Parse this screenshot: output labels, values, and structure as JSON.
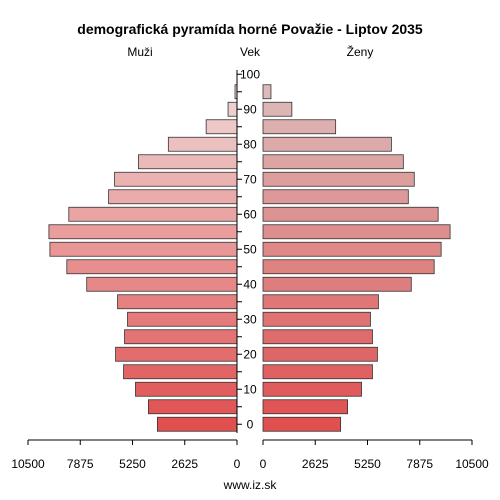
{
  "chart_data": {
    "type": "bar",
    "orientation": "horizontal-population-pyramid",
    "title": "demografická pyramída horné Považie - Liptov 2035",
    "left_label": "Muži",
    "center_label": "Vek",
    "right_label": "Ženy",
    "footer": "www.iz.sk",
    "xlim": [
      0,
      10500
    ],
    "x_ticks": [
      "10500",
      "7875",
      "5250",
      "2625",
      "0"
    ],
    "x_ticks_right": [
      "0",
      "2625",
      "5250",
      "7875",
      "10500"
    ],
    "age_ticks": [
      "0",
      "10",
      "20",
      "30",
      "40",
      "50",
      "60",
      "70",
      "80",
      "90",
      "100"
    ],
    "age_groups": [
      "0-4",
      "5-9",
      "10-14",
      "15-19",
      "20-24",
      "25-29",
      "30-34",
      "35-39",
      "40-44",
      "45-49",
      "50-54",
      "55-59",
      "60-64",
      "65-69",
      "70-74",
      "75-79",
      "80-84",
      "85-89",
      "90-94",
      "95-99",
      "100+"
    ],
    "series": [
      {
        "name": "Muži",
        "values": [
          4000,
          4450,
          5100,
          5700,
          6100,
          5650,
          5500,
          6000,
          7550,
          8550,
          9400,
          9450,
          8450,
          6450,
          6150,
          4950,
          3450,
          1550,
          450,
          100,
          0
        ]
      },
      {
        "name": "Ženy",
        "values": [
          3900,
          4250,
          4950,
          5500,
          5750,
          5500,
          5400,
          5800,
          7450,
          8600,
          8950,
          9400,
          8800,
          7300,
          7600,
          7050,
          6450,
          3650,
          1450,
          400,
          0
        ]
      }
    ],
    "colors": {
      "young": "#e05050",
      "old": "#f0dcdc",
      "old_right": "#dcc0c0",
      "stroke": "#333333"
    }
  }
}
